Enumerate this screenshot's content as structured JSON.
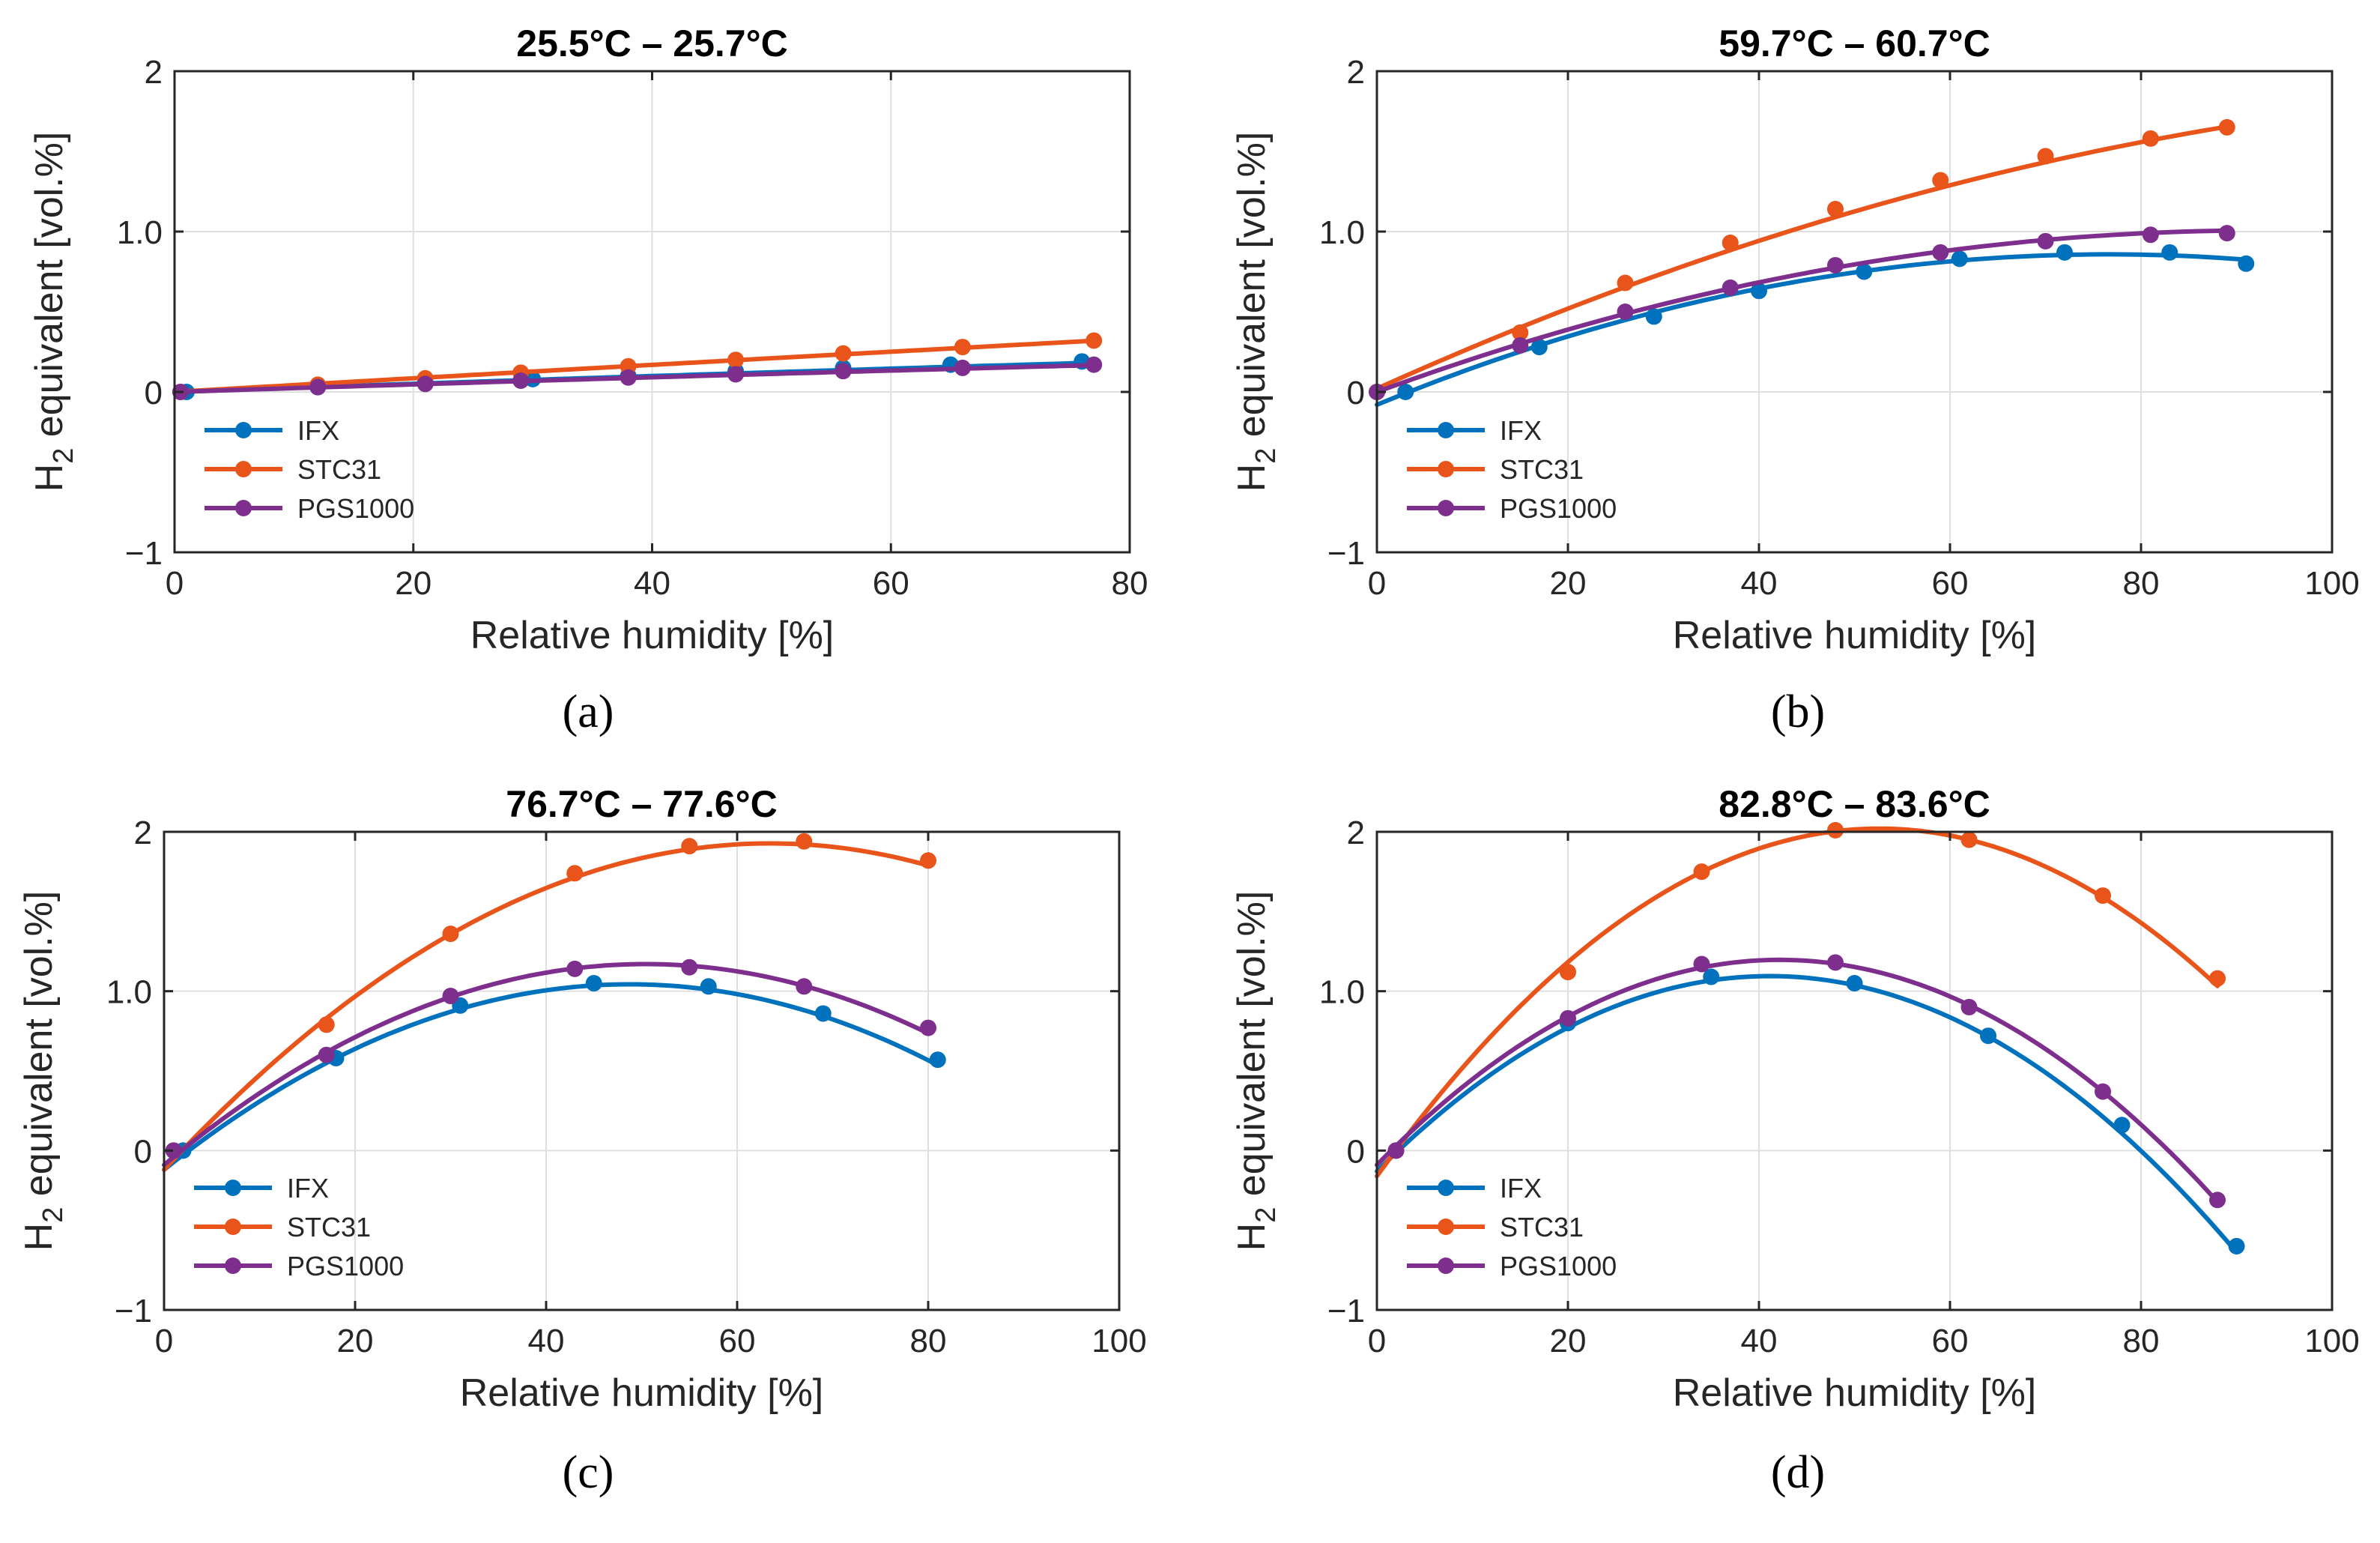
{
  "chart_data": [
    {
      "type": "line",
      "panel_label": "(a)",
      "title": "25.5°C – 25.7°C",
      "xlabel": "Relative humidity [%]",
      "ylabel_main": "H",
      "ylabel_sub": "2",
      "ylabel_rest": " equivalent [vol.%]",
      "xlim": [
        0,
        80
      ],
      "ylim": [
        -1,
        2
      ],
      "xticks": [
        0,
        20,
        40,
        60,
        80
      ],
      "xtick_labels": [
        "0",
        "20",
        "40",
        "60",
        "80"
      ],
      "yticks": [
        -1,
        0,
        1,
        2
      ],
      "ytick_labels": [
        "−1",
        "0",
        "1.0",
        "2"
      ],
      "grid": true,
      "legend_position": "lower-left",
      "series": [
        {
          "name": "IFX",
          "color": "#0072BD",
          "x": [
            1,
            12,
            21,
            30,
            38,
            47,
            56,
            65,
            76
          ],
          "y": [
            0.0,
            0.03,
            0.06,
            0.08,
            0.1,
            0.13,
            0.15,
            0.17,
            0.19
          ],
          "fit": [
            0.0,
            0.0026,
            -3e-06
          ]
        },
        {
          "name": "STC31",
          "color": "#E8541A",
          "x": [
            0.5,
            12,
            21,
            29,
            38,
            47,
            56,
            66,
            77
          ],
          "y": [
            0.0,
            0.045,
            0.085,
            0.12,
            0.16,
            0.2,
            0.24,
            0.28,
            0.32
          ],
          "fit": [
            0.0,
            0.0043,
            -2e-06
          ]
        },
        {
          "name": "PGS1000",
          "color": "#7E2F8E",
          "x": [
            0.5,
            12,
            21,
            29,
            38,
            47,
            56,
            66,
            77
          ],
          "y": [
            0.0,
            0.03,
            0.05,
            0.07,
            0.09,
            0.11,
            0.13,
            0.15,
            0.17
          ],
          "fit": [
            0.0,
            0.0024,
            -3e-06
          ]
        }
      ]
    },
    {
      "type": "line",
      "panel_label": "(b)",
      "title": "59.7°C – 60.7°C",
      "xlabel": "Relative humidity [%]",
      "ylabel_main": "H",
      "ylabel_sub": "2",
      "ylabel_rest": " equivalent [vol.%]",
      "xlim": [
        0,
        100
      ],
      "ylim": [
        -1,
        2
      ],
      "xticks": [
        0,
        20,
        40,
        60,
        80,
        100
      ],
      "xtick_labels": [
        "0",
        "20",
        "40",
        "60",
        "80",
        "100"
      ],
      "yticks": [
        -1,
        0,
        1,
        2
      ],
      "ytick_labels": [
        "−1",
        "0",
        "1.0",
        "2"
      ],
      "grid": true,
      "legend_position": "lower-left",
      "series": [
        {
          "name": "IFX",
          "color": "#0072BD",
          "x": [
            3,
            17,
            29,
            40,
            51,
            61,
            72,
            83,
            91
          ],
          "y": [
            0.0,
            0.28,
            0.47,
            0.63,
            0.75,
            0.83,
            0.87,
            0.87,
            0.8
          ],
          "fit": [
            -0.08,
            0.0245,
            -0.00016
          ]
        },
        {
          "name": "STC31",
          "color": "#E8541A",
          "x": [
            0,
            15,
            26,
            37,
            48,
            59,
            70,
            81,
            89
          ],
          "y": [
            0.0,
            0.37,
            0.68,
            0.93,
            1.14,
            1.32,
            1.47,
            1.58,
            1.65
          ],
          "fit": [
            0.02,
            0.0269,
            -9.6e-05
          ]
        },
        {
          "name": "PGS1000",
          "color": "#7E2F8E",
          "x": [
            0,
            15,
            26,
            37,
            48,
            59,
            70,
            81,
            89
          ],
          "y": [
            0.0,
            0.29,
            0.5,
            0.65,
            0.79,
            0.87,
            0.94,
            0.98,
            0.99
          ],
          "fit": [
            0.0,
            0.0218,
            -0.000118
          ]
        }
      ]
    },
    {
      "type": "line",
      "panel_label": "(c)",
      "title": "76.7°C – 77.6°C",
      "xlabel": "Relative humidity [%]",
      "ylabel_main": "H",
      "ylabel_sub": "2",
      "ylabel_rest": " equivalent [vol.%]",
      "xlim": [
        0,
        100
      ],
      "ylim": [
        -1,
        2
      ],
      "xticks": [
        0,
        20,
        40,
        60,
        80,
        100
      ],
      "xtick_labels": [
        "0",
        "20",
        "40",
        "60",
        "80",
        "100"
      ],
      "yticks": [
        -1,
        0,
        1,
        2
      ],
      "ytick_labels": [
        "−1",
        "0",
        "1.0",
        "2"
      ],
      "grid": true,
      "legend_position": "lower-left",
      "series": [
        {
          "name": "IFX",
          "color": "#0072BD",
          "x": [
            2,
            18,
            31,
            45,
            57,
            69,
            81
          ],
          "y": [
            0.0,
            0.58,
            0.91,
            1.05,
            1.03,
            0.86,
            0.57
          ],
          "fit": [
            -0.12,
            0.0477,
            -0.000489
          ]
        },
        {
          "name": "STC31",
          "color": "#E8541A",
          "x": [
            1,
            17,
            30,
            43,
            55,
            67,
            80
          ],
          "y": [
            0.0,
            0.79,
            1.36,
            1.74,
            1.91,
            1.94,
            1.82
          ],
          "fit": [
            -0.12,
            0.0645,
            -0.000508
          ]
        },
        {
          "name": "PGS1000",
          "color": "#7E2F8E",
          "x": [
            1,
            17,
            30,
            43,
            55,
            67,
            80
          ],
          "y": [
            0.0,
            0.6,
            0.97,
            1.14,
            1.15,
            1.03,
            0.77
          ],
          "fit": [
            -0.09,
            0.05,
            -0.000496
          ]
        }
      ]
    },
    {
      "type": "line",
      "panel_label": "(d)",
      "title": "82.8°C – 83.6°C",
      "xlabel": "Relative humidity [%]",
      "ylabel_main": "H",
      "ylabel_sub": "2",
      "ylabel_rest": " equivalent [vol.%]",
      "xlim": [
        0,
        100
      ],
      "ylim": [
        -1,
        2
      ],
      "xticks": [
        0,
        20,
        40,
        60,
        80,
        100
      ],
      "xtick_labels": [
        "0",
        "20",
        "40",
        "60",
        "80",
        "100"
      ],
      "yticks": [
        -1,
        0,
        1,
        2
      ],
      "ytick_labels": [
        "−1",
        "0",
        "1.0",
        "2"
      ],
      "grid": true,
      "legend_position": "lower-left",
      "series": [
        {
          "name": "IFX",
          "color": "#0072BD",
          "x": [
            2,
            20,
            35,
            50,
            64,
            78,
            90
          ],
          "y": [
            0.0,
            0.8,
            1.09,
            1.05,
            0.72,
            0.16,
            -0.6
          ],
          "fit": [
            -0.13,
            0.0596,
            -0.000725
          ]
        },
        {
          "name": "STC31",
          "color": "#E8541A",
          "x": [
            2,
            20,
            34,
            48,
            62,
            76,
            88
          ],
          "y": [
            0.0,
            1.12,
            1.75,
            2.01,
            1.95,
            1.6,
            1.08
          ],
          "fit": [
            -0.16,
            0.0829,
            -0.000788
          ]
        },
        {
          "name": "PGS1000",
          "color": "#7E2F8E",
          "x": [
            2,
            20,
            34,
            48,
            62,
            76,
            88
          ],
          "y": [
            0.0,
            0.83,
            1.17,
            1.18,
            0.9,
            0.37,
            -0.31
          ],
          "fit": [
            -0.09,
            0.061,
            -0.000723
          ]
        }
      ]
    }
  ]
}
